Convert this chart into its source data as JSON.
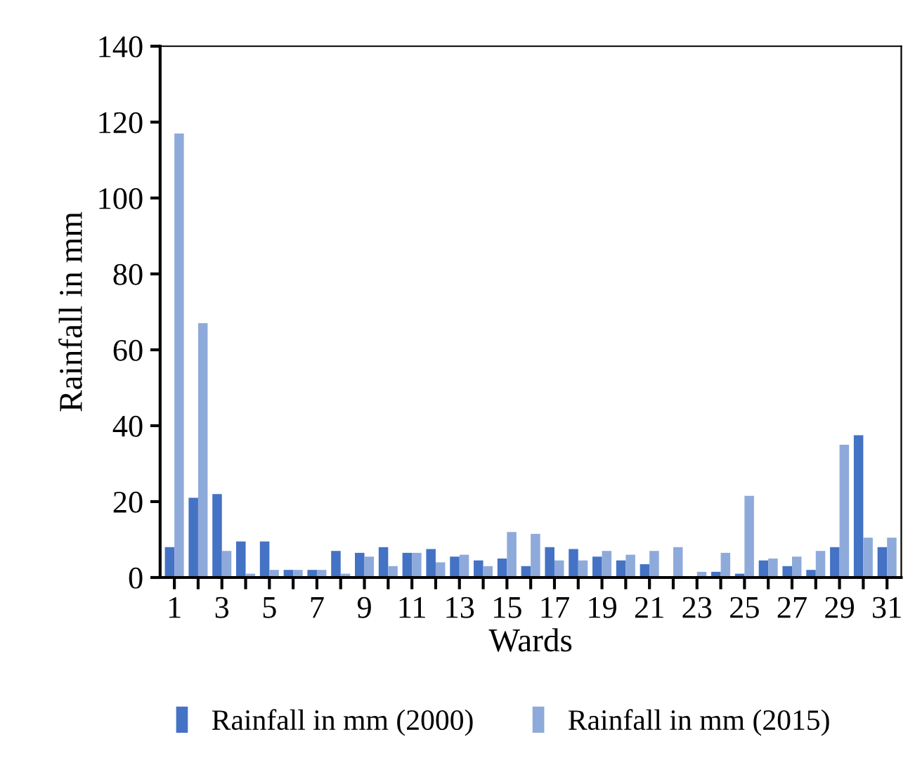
{
  "chart_data": {
    "type": "bar",
    "xlabel": "Wards",
    "ylabel": "Rainfall in mm",
    "categories": [
      "1",
      null,
      "3",
      null,
      "5",
      null,
      "7",
      null,
      "9",
      null,
      "11",
      null,
      "13",
      null,
      "15",
      null,
      "17",
      null,
      "19",
      null,
      "21",
      null,
      "23",
      null,
      "25",
      null,
      "27",
      null,
      "29",
      null,
      "31"
    ],
    "series": [
      {
        "name": "Rainfall in mm (2000)",
        "color": "#4472c4",
        "values": [
          8,
          21,
          22,
          9.5,
          9.5,
          2,
          2,
          7,
          6.5,
          8,
          6.5,
          7.5,
          5.5,
          4.5,
          5,
          3,
          8,
          7.5,
          5.5,
          4.5,
          3.5,
          0,
          0,
          1.5,
          1,
          4.5,
          3,
          2,
          8,
          37.5,
          8
        ]
      },
      {
        "name": "Rainfall in mm (2015)",
        "color": "#8eaadb",
        "values": [
          117,
          67,
          7,
          1,
          2,
          2,
          2,
          1,
          5.5,
          3,
          6.5,
          4,
          6,
          3,
          12,
          11.5,
          4.5,
          4.5,
          7,
          6,
          7,
          8,
          1.5,
          6.5,
          21.5,
          5,
          5.5,
          7,
          35,
          10.5,
          10.5
        ]
      }
    ],
    "ylim": [
      0,
      140
    ],
    "yticks": [
      0,
      20,
      40,
      60,
      80,
      100,
      120,
      140
    ],
    "grid": false,
    "legend": "bottom"
  }
}
